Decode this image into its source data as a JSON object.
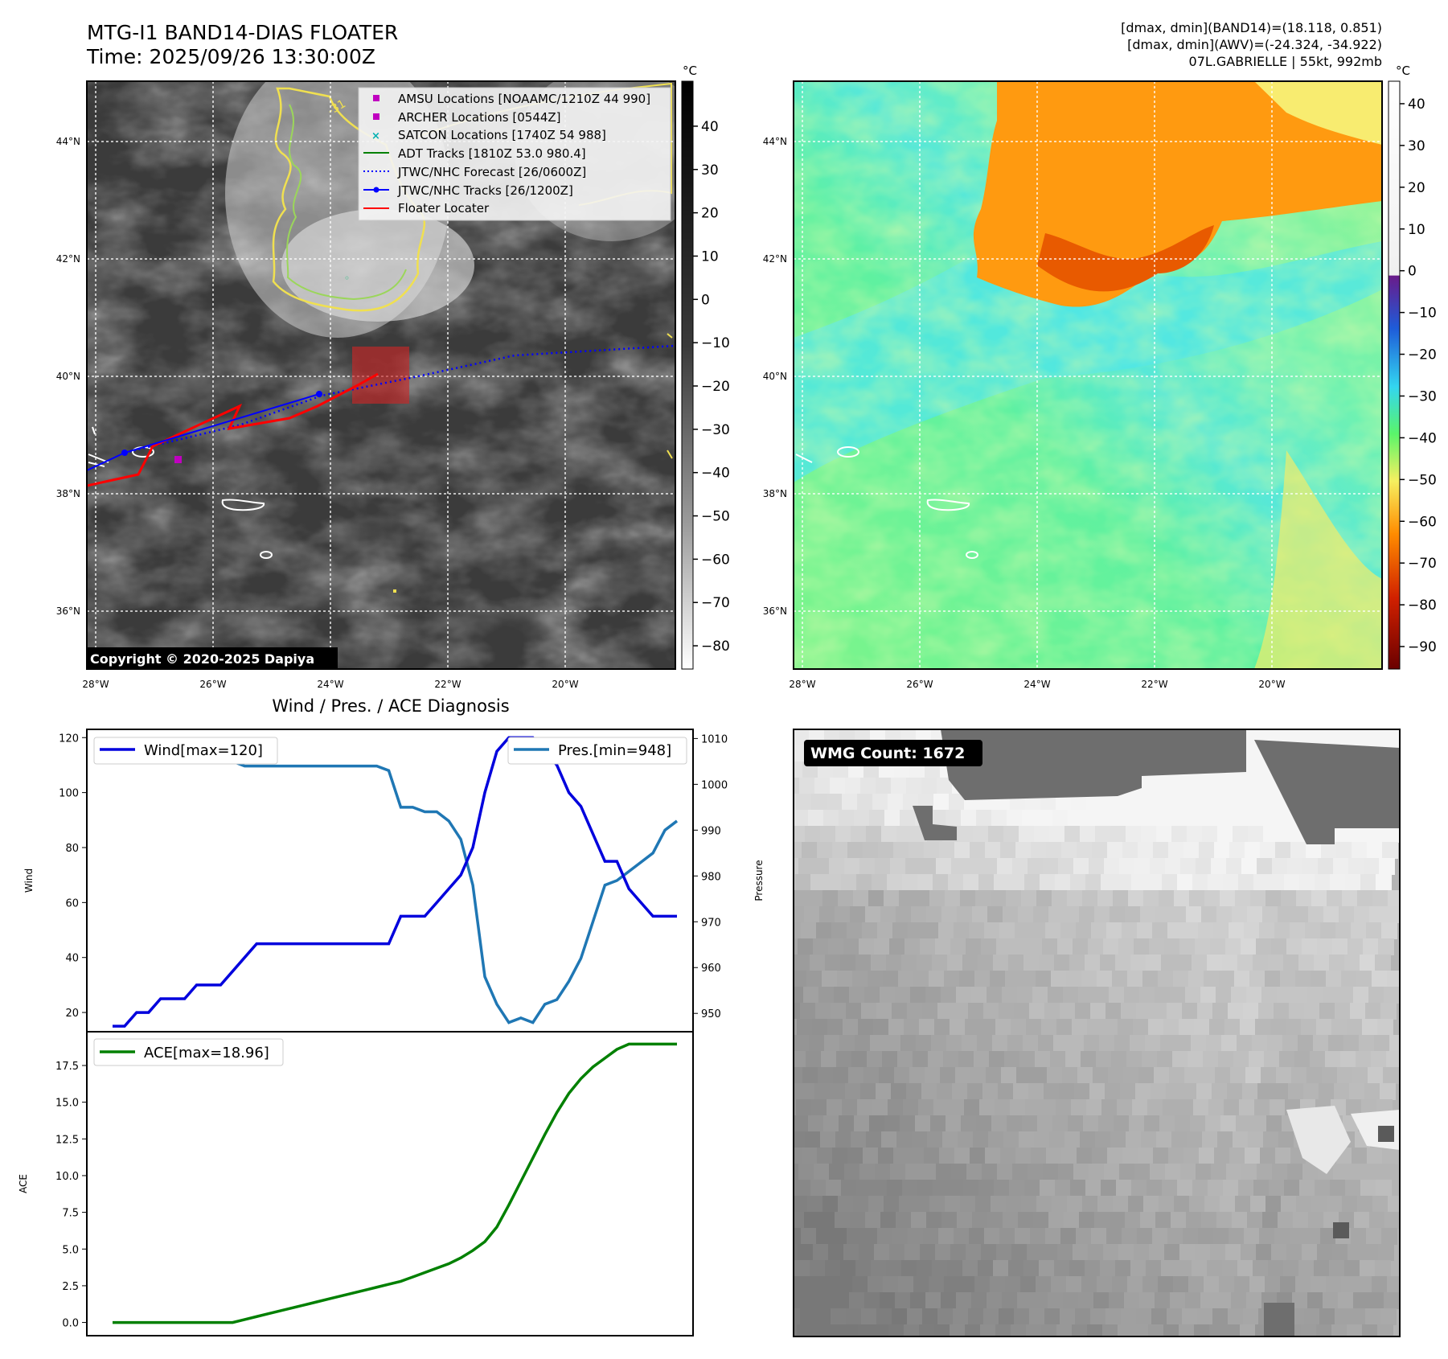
{
  "header": {
    "title_line1": "MTG-I1 BAND14-DIAS FLOATER",
    "title_line2": "Time: 2025/09/26 13:30:00Z",
    "stats_line1": "[dmax, dmin](BAND14)=(18.118, 0.851)",
    "stats_line2": "[dmax, dmin](AWV)=(-24.324, -34.922)",
    "stats_line3": "07L.GABRIELLE | 55kt, 992mb"
  },
  "ir_map": {
    "lat_labels": [
      "44°N",
      "42°N",
      "40°N",
      "38°N",
      "36°N"
    ],
    "lon_labels": [
      "28°W",
      "26°W",
      "24°W",
      "22°W",
      "20°W"
    ],
    "copyright": "Copyright © 2020-2025 Dapiya",
    "contour_label": "-31",
    "colorbar_unit": "°C",
    "colorbar_ticks": [
      "40",
      "30",
      "20",
      "10",
      "0",
      "−10",
      "−20",
      "−30",
      "−40",
      "−50",
      "−60",
      "−70",
      "−80"
    ],
    "legend": [
      {
        "label": "AMSU Locations [NOAAMC/1210Z 44 990]",
        "color": "#c000c0",
        "marker": "square"
      },
      {
        "label": "ARCHER Locations [0544Z]",
        "color": "#c000c0",
        "marker": "square"
      },
      {
        "label": "SATCON Locations [1740Z 54 988]",
        "color": "#00b0b0",
        "marker": "x"
      },
      {
        "label": "ADT Tracks [1810Z 53.0 980.4]",
        "color": "#008000",
        "marker": "line"
      },
      {
        "label": "JTWC/NHC Forecast [26/0600Z]",
        "color": "#0000ff",
        "marker": "dotted"
      },
      {
        "label": "JTWC/NHC Tracks [26/1200Z]",
        "color": "#0000ff",
        "marker": "line-dot"
      },
      {
        "label": "Floater Locater",
        "color": "#ff0000",
        "marker": "line"
      }
    ]
  },
  "wv_map": {
    "lat_labels": [
      "44°N",
      "42°N",
      "40°N",
      "38°N",
      "36°N"
    ],
    "lon_labels": [
      "28°W",
      "26°W",
      "24°W",
      "22°W",
      "20°W"
    ],
    "colorbar_unit": "°C",
    "colorbar_ticks": [
      "40",
      "30",
      "20",
      "10",
      "0",
      "−10",
      "−20",
      "−30",
      "−40",
      "−50",
      "−60",
      "−70",
      "−80",
      "−90"
    ]
  },
  "wmg_panel": {
    "badge": "WMG Count: 1672"
  },
  "chart_data": [
    {
      "type": "line",
      "title": "Wind / Pres. / ACE Diagnosis",
      "ylabel": "Wind",
      "y2label": "Pressure",
      "ylim": [
        13,
        123
      ],
      "y2lim": [
        946,
        1012
      ],
      "yticks": [
        "120",
        "100",
        "80",
        "60",
        "40",
        "20"
      ],
      "y2ticks": [
        "1010",
        "1000",
        "990",
        "980",
        "970",
        "960",
        "950"
      ],
      "x": [
        0,
        1,
        2,
        3,
        4,
        5,
        6,
        7,
        8,
        9,
        10,
        11,
        12,
        13,
        14,
        15,
        16,
        17,
        18,
        19,
        20,
        21,
        22,
        23,
        24,
        25,
        26,
        27,
        28,
        29,
        30,
        31,
        32,
        33,
        34,
        35,
        36,
        37,
        38,
        39,
        40,
        41,
        42,
        43,
        44,
        45,
        46,
        47
      ],
      "series": [
        {
          "name": "Wind[max=120]",
          "color": "#0000dd",
          "axis": "left",
          "values": [
            15,
            15,
            20,
            20,
            25,
            25,
            25,
            30,
            30,
            30,
            35,
            40,
            45,
            45,
            45,
            45,
            45,
            45,
            45,
            45,
            45,
            45,
            45,
            45,
            55,
            55,
            55,
            60,
            65,
            70,
            80,
            100,
            115,
            120,
            120,
            120,
            115,
            110,
            100,
            95,
            85,
            75,
            75,
            65,
            60,
            55,
            55,
            55
          ]
        },
        {
          "name": "Pres.[min=948]",
          "color": "#1f77b4",
          "axis": "right",
          "values": [
            1010,
            1010,
            1009,
            1009,
            1008,
            1007,
            1006,
            1006,
            1006,
            1005,
            1005,
            1004,
            1004,
            1004,
            1004,
            1004,
            1004,
            1004,
            1004,
            1004,
            1004,
            1004,
            1004,
            1003,
            995,
            995,
            994,
            994,
            992,
            988,
            978,
            958,
            952,
            948,
            949,
            948,
            952,
            953,
            957,
            962,
            970,
            978,
            979,
            981,
            983,
            985,
            990,
            992
          ]
        }
      ]
    },
    {
      "type": "line",
      "ylabel": "ACE",
      "ylim": [
        -0.9,
        19.8
      ],
      "yticks": [
        "17.5",
        "15.0",
        "12.5",
        "10.0",
        "7.5",
        "5.0",
        "2.5",
        "0.0"
      ],
      "x": [
        0,
        1,
        2,
        3,
        4,
        5,
        6,
        7,
        8,
        9,
        10,
        11,
        12,
        13,
        14,
        15,
        16,
        17,
        18,
        19,
        20,
        21,
        22,
        23,
        24,
        25,
        26,
        27,
        28,
        29,
        30,
        31,
        32,
        33,
        34,
        35,
        36,
        37,
        38,
        39,
        40,
        41,
        42,
        43,
        44,
        45,
        46,
        47
      ],
      "series": [
        {
          "name": "ACE[max=18.96]",
          "color": "#008000",
          "values": [
            0,
            0,
            0,
            0,
            0,
            0,
            0,
            0,
            0,
            0,
            0,
            0.2,
            0.4,
            0.6,
            0.8,
            1.0,
            1.2,
            1.4,
            1.6,
            1.8,
            2.0,
            2.2,
            2.4,
            2.6,
            2.8,
            3.1,
            3.4,
            3.7,
            4.0,
            4.4,
            4.9,
            5.5,
            6.5,
            8.0,
            9.6,
            11.2,
            12.8,
            14.3,
            15.6,
            16.6,
            17.4,
            18.0,
            18.6,
            18.96,
            18.96,
            18.96,
            18.96,
            18.96
          ]
        }
      ]
    }
  ]
}
